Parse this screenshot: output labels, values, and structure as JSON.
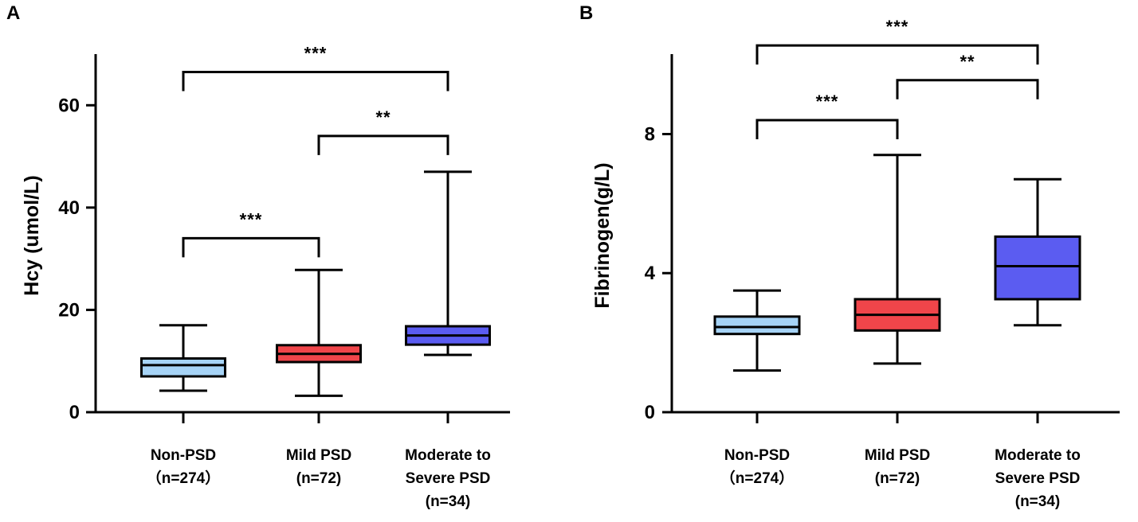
{
  "chart_data": [
    {
      "type": "box",
      "panel_label": "A",
      "ylabel": "Hcy (umol/L)",
      "ylim": [
        0,
        70
      ],
      "yticks": [
        0,
        20,
        40,
        60
      ],
      "yticks_text": [
        "0",
        "20",
        "40",
        "60"
      ],
      "colors": [
        "#a6d3f6",
        "#f0454a",
        "#5b5cf1"
      ],
      "categories": [
        {
          "lines": [
            "Non-PSD",
            "（n=274）"
          ]
        },
        {
          "lines": [
            "Mild PSD",
            "(n=72)"
          ]
        },
        {
          "lines": [
            "Moderate to",
            "Severe PSD",
            "(n=34)"
          ]
        }
      ],
      "boxes": [
        {
          "min": 4.2,
          "q1": 7.0,
          "median": 9.2,
          "q3": 10.5,
          "max": 17.0
        },
        {
          "min": 3.2,
          "q1": 9.8,
          "median": 11.4,
          "q3": 13.1,
          "max": 27.8
        },
        {
          "min": 11.2,
          "q1": 13.2,
          "median": 15.0,
          "q3": 16.8,
          "max": 47.0
        }
      ],
      "brackets": [
        {
          "from": 0,
          "to": 1,
          "y": 34.0,
          "label": "***"
        },
        {
          "from": 1,
          "to": 2,
          "y": 54.0,
          "label": "**"
        },
        {
          "from": 0,
          "to": 2,
          "y": 66.5,
          "label": "***"
        }
      ]
    },
    {
      "type": "box",
      "panel_label": "B",
      "ylabel": "Fibrinogen(g/L)",
      "ylim": [
        0,
        10.3
      ],
      "yticks": [
        0,
        4,
        8
      ],
      "yticks_text": [
        "0",
        "4",
        "8"
      ],
      "colors": [
        "#a6d3f6",
        "#f0454a",
        "#5b5cf1"
      ],
      "categories": [
        {
          "lines": [
            "Non-PSD",
            "（n=274）"
          ]
        },
        {
          "lines": [
            "Mild PSD",
            "(n=72)"
          ]
        },
        {
          "lines": [
            "Moderate to",
            "Severe PSD",
            "(n=34)"
          ]
        }
      ],
      "boxes": [
        {
          "min": 1.2,
          "q1": 2.25,
          "median": 2.45,
          "q3": 2.75,
          "max": 3.5
        },
        {
          "min": 1.4,
          "q1": 2.35,
          "median": 2.8,
          "q3": 3.25,
          "max": 7.4
        },
        {
          "min": 2.5,
          "q1": 3.25,
          "median": 4.2,
          "q3": 5.05,
          "max": 6.7
        }
      ],
      "brackets": [
        {
          "from": 0,
          "to": 1,
          "y": 8.4,
          "label": "***"
        },
        {
          "from": 1,
          "to": 2,
          "y": 9.55,
          "label": "**"
        },
        {
          "from": 0,
          "to": 2,
          "y": 10.55,
          "label": "***"
        }
      ]
    }
  ]
}
